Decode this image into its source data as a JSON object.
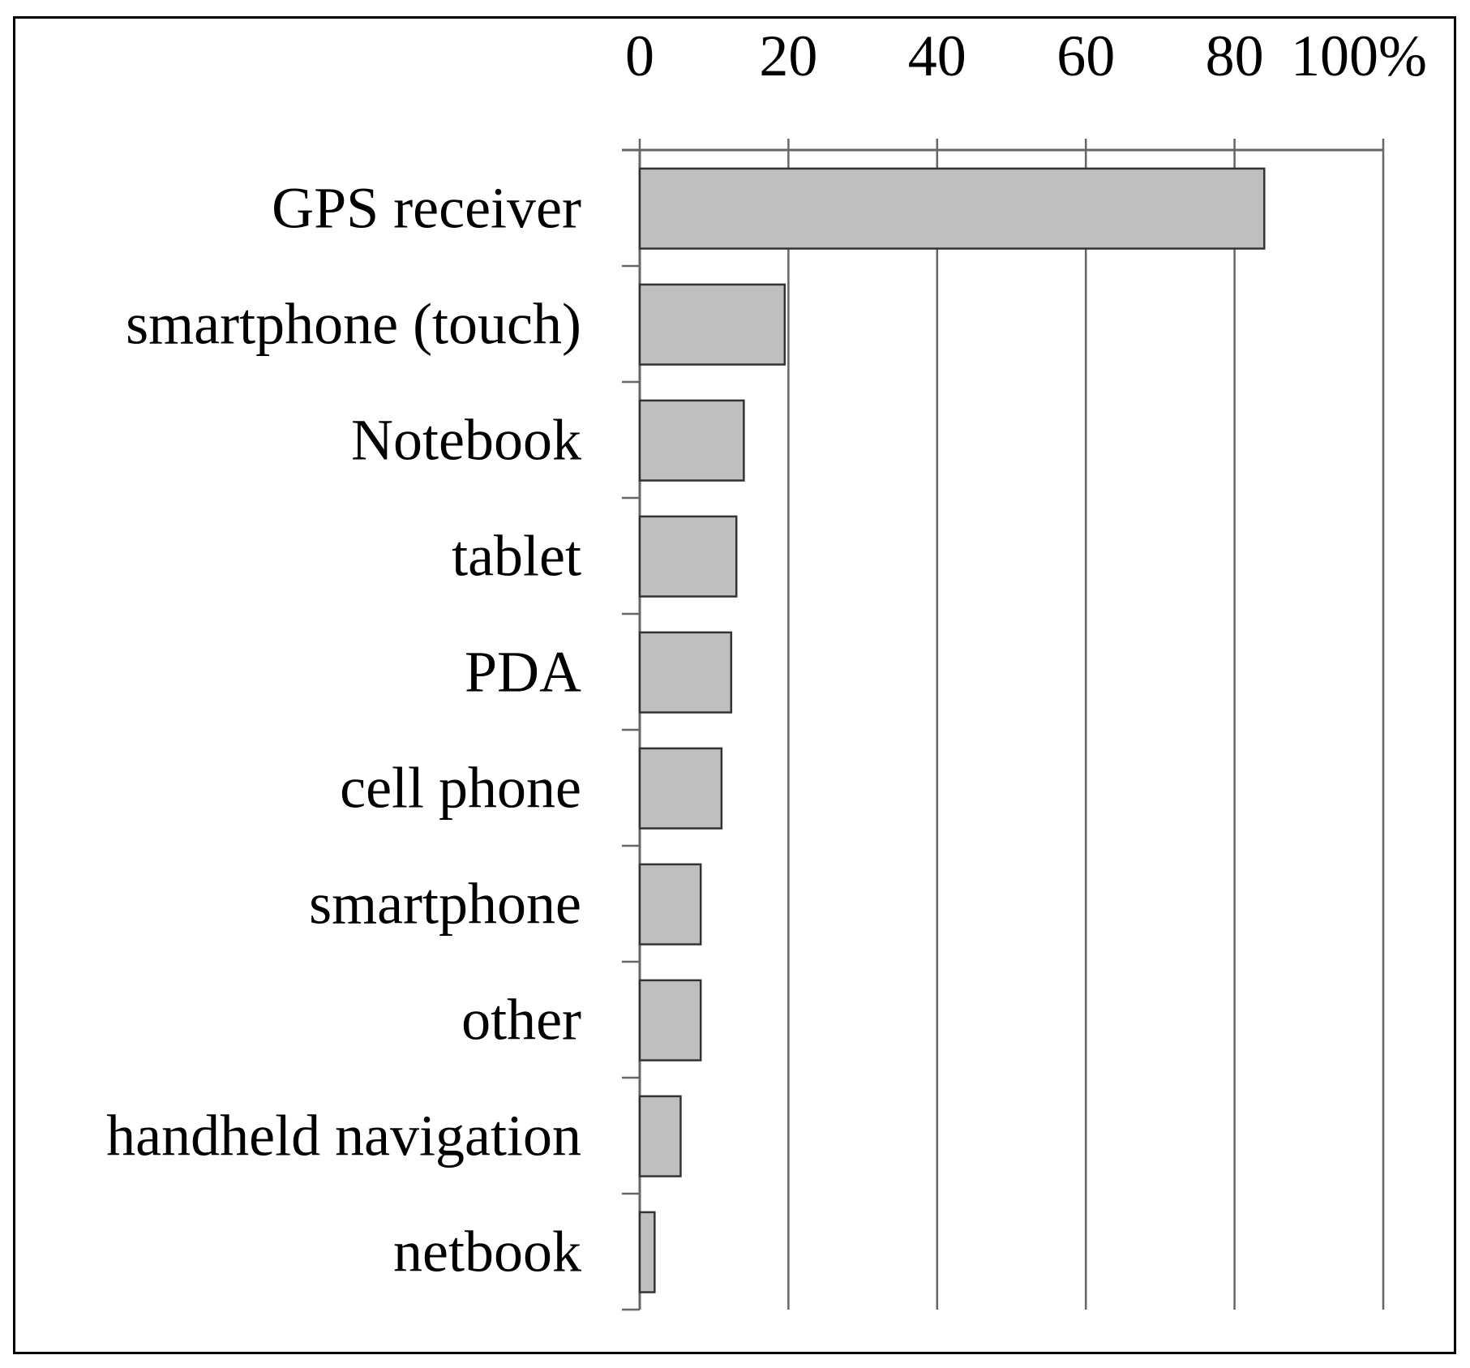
{
  "chart_data": {
    "type": "bar",
    "orientation": "horizontal",
    "categories": [
      "GPS receiver",
      "smartphone (touch)",
      "Notebook",
      "tablet",
      "PDA",
      "cell phone",
      "smartphone",
      "other",
      "handheld navigation",
      "netbook"
    ],
    "values": [
      84,
      19.5,
      14,
      13,
      12.3,
      11,
      8.2,
      8.2,
      5.5,
      2
    ],
    "xlim": [
      0,
      100
    ],
    "x_ticks": [
      0,
      20,
      40,
      60,
      80,
      100
    ],
    "x_tick_labels": [
      "0",
      "20",
      "40",
      "60",
      "80",
      "100%"
    ],
    "x_axis_position": "top",
    "grid": true,
    "title": "",
    "xlabel": "",
    "ylabel": "",
    "colors": {
      "bar_fill": "#bfbfbf",
      "bar_stroke": "#333333",
      "grid": "#666666"
    }
  }
}
